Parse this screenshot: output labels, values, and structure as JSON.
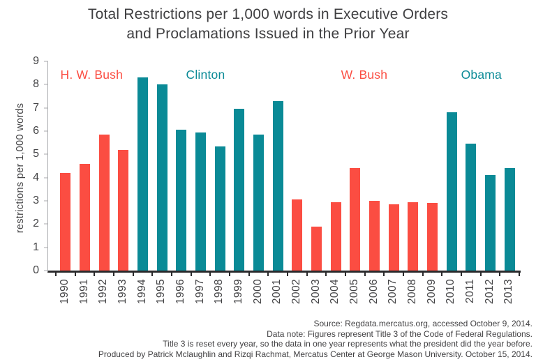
{
  "title": {
    "line1": "Total Restrictions per 1,000 words in Executive Orders",
    "line2": "and Proclamations Issued in the Prior Year"
  },
  "chart_data": {
    "type": "bar",
    "title": "Total Restrictions per 1,000 words in Executive Orders and Proclamations Issued in the Prior Year",
    "ylabel": "restrictions per 1,000 words",
    "xlabel": "",
    "ylim": [
      0,
      9
    ],
    "yticks": [
      0,
      1,
      2,
      3,
      4,
      5,
      6,
      7,
      8,
      9
    ],
    "grid": false,
    "legend_position": "none",
    "categories": [
      "1990",
      "1991",
      "1992",
      "1993",
      "1994",
      "1995",
      "1996",
      "1997",
      "1998",
      "1999",
      "2000",
      "2001",
      "2002",
      "2003",
      "2004",
      "2005",
      "2006",
      "2007",
      "2008",
      "2009",
      "2010",
      "2011",
      "2012",
      "2013"
    ],
    "values": [
      4.2,
      4.6,
      5.85,
      5.2,
      8.3,
      8.0,
      6.05,
      5.95,
      5.35,
      6.95,
      5.85,
      7.3,
      3.05,
      1.9,
      2.95,
      4.4,
      3.0,
      2.85,
      2.95,
      2.9,
      6.8,
      5.45,
      4.1,
      4.4
    ],
    "bar_president_index": [
      0,
      0,
      0,
      0,
      1,
      1,
      1,
      1,
      1,
      1,
      1,
      1,
      2,
      2,
      2,
      2,
      2,
      2,
      2,
      2,
      3,
      3,
      3,
      3
    ],
    "presidents": [
      {
        "name": "H. W. Bush",
        "slug": "hw-bush",
        "color": "#FB4D42",
        "label_x_percent": 9.2
      },
      {
        "name": "Clinton",
        "slug": "clinton",
        "color": "#0A8A96",
        "label_x_percent": 33.3
      },
      {
        "name": "W. Bush",
        "slug": "w-bush",
        "color": "#FB4D42",
        "label_x_percent": 66.9
      },
      {
        "name": "Obama",
        "slug": "obama",
        "color": "#0A8A96",
        "label_x_percent": 91.7
      }
    ]
  },
  "colors": {
    "red": "#FB4D42",
    "teal": "#0A8A96",
    "title_text": "#3F3F41",
    "tick_text": "#434345",
    "y_axis_line": "#A8AAAD",
    "x_axis_line": "#2A2A2C",
    "footer_text": "#414042"
  },
  "footer": {
    "lines": [
      "Source: Regdata.mercatus.org, accessed October 9, 2014.",
      "Data note: Figures represent Title 3 of the Code of Federal Regulations.",
      "Title 3 is reset every year, so the data in one year represents what the president did the year before.",
      "Produced by Patrick Mclaughlin and Rizqi Rachmat, Mercatus Center at George Mason University. October 15, 2014."
    ]
  }
}
